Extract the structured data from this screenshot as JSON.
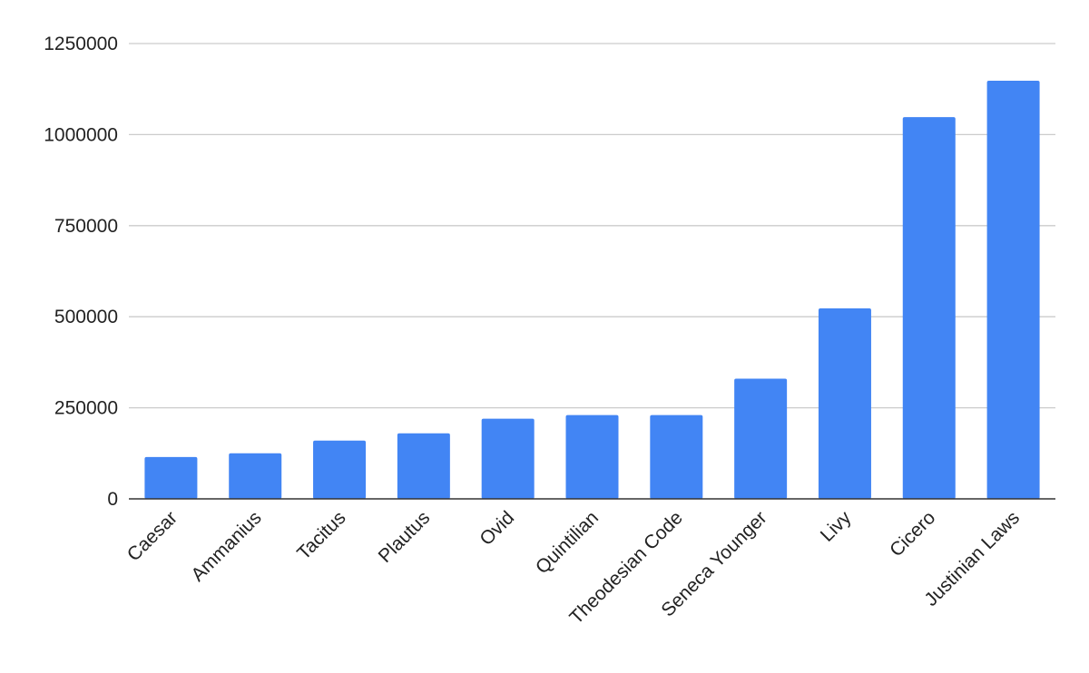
{
  "chart_data": {
    "type": "bar",
    "title": "",
    "xlabel": "",
    "ylabel": "",
    "categories": [
      "Caesar",
      "Ammanius",
      "Tacitus",
      "Plautus",
      "Ovid",
      "Quintilian",
      "Theodesian Code",
      "Seneca Younger",
      "Livy",
      "Cicero",
      "Justinian Laws"
    ],
    "values": [
      115000,
      125000,
      160000,
      180000,
      220000,
      230000,
      230000,
      330000,
      523000,
      1048000,
      1148000
    ],
    "ylim": [
      0,
      1250000
    ],
    "yticks": [
      "0",
      "250000",
      "500000",
      "750000",
      "1000000",
      "1250000"
    ],
    "grid": true,
    "legend": "none",
    "bar_color": "#4285f4"
  }
}
